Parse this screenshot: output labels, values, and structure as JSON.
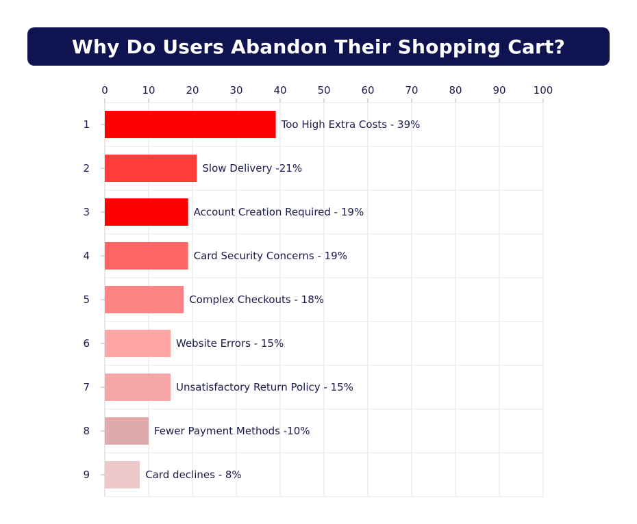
{
  "title": "Why Do Users Abandon Their Shopping Cart?",
  "chart_data": {
    "type": "bar",
    "orientation": "horizontal",
    "title": "Why Do Users Abandon Their Shopping Cart?",
    "xlim": [
      0,
      100
    ],
    "x_ticks": [
      0,
      10,
      20,
      30,
      40,
      50,
      60,
      70,
      80,
      90,
      100
    ],
    "x_axis_position": "top",
    "grid": true,
    "categories": [
      "1",
      "2",
      "3",
      "4",
      "5",
      "6",
      "7",
      "8",
      "9"
    ],
    "values": [
      39,
      21,
      19,
      19,
      18,
      15,
      15,
      10,
      8
    ],
    "labels": [
      "Too High Extra Costs - 39%",
      "Slow Delivery -21%",
      "Account Creation Required - 19%",
      "Card Security Concerns - 19%",
      "Complex Checkouts  - 18%",
      "Website Errors - 15%",
      "Unsatisfactory Return Policy - 15%",
      "Fewer Payment Methods -10%",
      "Card declines - 8%"
    ],
    "colors": [
      "#ff0000",
      "#ff3d3d",
      "#ff0000",
      "#ff6464",
      "#ff8585",
      "#ffa5a5",
      "#f5a5a5",
      "#e0aaaa",
      "#eec9c9"
    ]
  }
}
